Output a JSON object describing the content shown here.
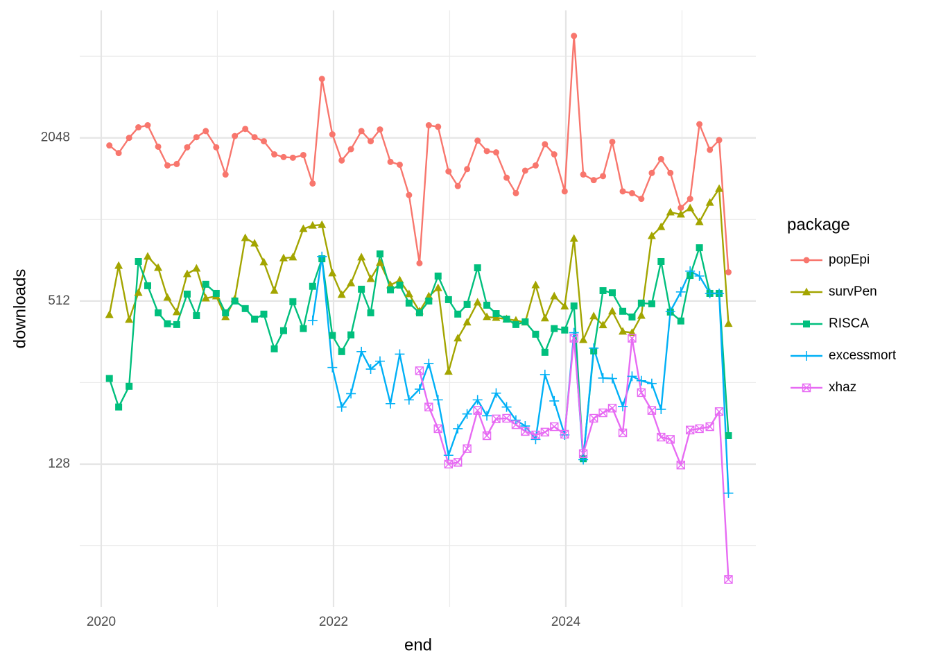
{
  "chart_data": {
    "type": "line",
    "x_label": "end",
    "y_label": "downloads",
    "x": [
      2020.07,
      2020.15,
      2020.24,
      2020.32,
      2020.4,
      2020.49,
      2020.57,
      2020.65,
      2020.74,
      2020.82,
      2020.9,
      2020.99,
      2021.07,
      2021.15,
      2021.24,
      2021.32,
      2021.4,
      2021.49,
      2021.57,
      2021.65,
      2021.74,
      2021.82,
      2021.9,
      2021.99,
      2022.07,
      2022.15,
      2022.24,
      2022.32,
      2022.4,
      2022.49,
      2022.57,
      2022.65,
      2022.74,
      2022.82,
      2022.9,
      2022.99,
      2023.07,
      2023.15,
      2023.24,
      2023.32,
      2023.4,
      2023.49,
      2023.57,
      2023.65,
      2023.74,
      2023.82,
      2023.9,
      2023.99,
      2024.07,
      2024.15,
      2024.24,
      2024.32,
      2024.4,
      2024.49,
      2024.57,
      2024.65,
      2024.74,
      2024.82,
      2024.9,
      2024.99,
      2025.07,
      2025.15,
      2025.24,
      2025.32,
      2025.4
    ],
    "xlim": [
      2019.815,
      2025.636
    ],
    "xticks": [
      2020,
      2022,
      2024
    ],
    "ylim": [
      38,
      6050
    ],
    "yticks": [
      128,
      512,
      2048
    ],
    "log_y": true,
    "grid": true,
    "legend_title": "package",
    "legend_position": "right",
    "series": [
      {
        "name": "popEpi",
        "color": "#F8766D",
        "marker": "circle",
        "values": [
          1920,
          1800,
          2048,
          2240,
          2280,
          1900,
          1620,
          1640,
          1890,
          2060,
          2170,
          1890,
          1500,
          2080,
          2210,
          2060,
          1990,
          1780,
          1740,
          1730,
          1770,
          1390,
          3380,
          2110,
          1690,
          1860,
          2170,
          1990,
          2200,
          1670,
          1630,
          1260,
          706,
          2280,
          2250,
          1540,
          1360,
          1570,
          2000,
          1830,
          1810,
          1460,
          1280,
          1550,
          1620,
          1940,
          1780,
          1300,
          4870,
          1500,
          1430,
          1480,
          1980,
          1300,
          1280,
          1220,
          1520,
          1710,
          1520,
          1130,
          1220,
          2300,
          1850,
          2010,
          654
        ]
      },
      {
        "name": "survPen",
        "color": "#A3A500",
        "marker": "triangle",
        "values": [
          455,
          691,
          437,
          549,
          747,
          679,
          527,
          466,
          644,
          675,
          524,
          533,
          447,
          521,
          875,
          835,
          712,
          559,
          737,
          742,
          945,
          972,
          978,
          648,
          540,
          596,
          742,
          618,
          708,
          586,
          611,
          543,
          469,
          533,
          572,
          281,
          373,
          427,
          506,
          447,
          444,
          439,
          434,
          427,
          586,
          442,
          533,
          489,
          870,
          368,
          450,
          417,
          469,
          395,
          391,
          452,
          890,
          961,
          1088,
          1069,
          1127,
          1002,
          1181,
          1329,
          422
        ]
      },
      {
        "name": "RISCA",
        "color": "#00BF7D",
        "marker": "square",
        "values": [
          265,
          208,
          248,
          716,
          583,
          463,
          422,
          419,
          543,
          452,
          590,
          546,
          463,
          512,
          480,
          439,
          458,
          341,
          398,
          509,
          405,
          580,
          733,
          382,
          333,
          384,
          566,
          463,
          764,
          563,
          586,
          503,
          463,
          512,
          633,
          518,
          458,
          497,
          679,
          494,
          460,
          439,
          419,
          429,
          386,
          331,
          405,
          400,
          491,
          134,
          335,
          559,
          549,
          469,
          447,
          503,
          500,
          716,
          466,
          432,
          636,
          805,
          546,
          546,
          163
        ]
      },
      {
        "name": "excessmort",
        "color": "#00B0F6",
        "marker": "plus",
        "values": [
          null,
          null,
          null,
          null,
          null,
          null,
          null,
          null,
          null,
          null,
          null,
          null,
          null,
          null,
          null,
          null,
          null,
          null,
          null,
          null,
          null,
          434,
          747,
          291,
          208,
          233,
          333,
          287,
          307,
          214,
          326,
          221,
          242,
          301,
          221,
          138,
          173,
          196,
          221,
          193,
          234,
          208,
          186,
          177,
          158,
          274,
          219,
          164,
          391,
          133,
          343,
          266,
          265,
          209,
          270,
          260,
          254,
          204,
          469,
          553,
          660,
          633,
          546,
          546,
          100
        ]
      },
      {
        "name": "xhaz",
        "color": "#E76BF3",
        "marker": "boxcross",
        "values": [
          null,
          null,
          null,
          null,
          null,
          null,
          null,
          null,
          null,
          null,
          null,
          null,
          null,
          null,
          null,
          null,
          null,
          null,
          null,
          null,
          null,
          null,
          null,
          null,
          null,
          null,
          null,
          null,
          null,
          null,
          null,
          null,
          283,
          208,
          173,
          128,
          130,
          146,
          202,
          163,
          188,
          189,
          179,
          169,
          164,
          168,
          176,
          165,
          373,
          140,
          189,
          198,
          206,
          167,
          373,
          235,
          202,
          161,
          158,
          127,
          171,
          173,
          176,
          200,
          48
        ]
      }
    ]
  }
}
